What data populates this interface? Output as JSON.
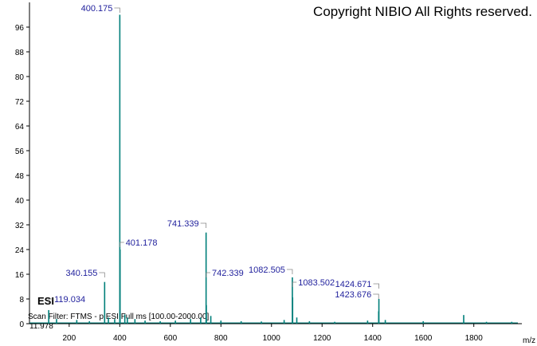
{
  "chart_data": {
    "type": "bar",
    "copyright": "Copyright NIBIO All Rights reserved.",
    "ion_mode": "ESI",
    "scan_filter": "Scan Filter: FTMS - p ESI Full ms [100.00-2000.00]",
    "retention_time": "11.978",
    "x_label": "m/z",
    "color": "#007f7a",
    "xlim": [
      43,
      1990
    ],
    "ylim": [
      0,
      104
    ],
    "xticks": [
      200,
      400,
      600,
      800,
      1000,
      1200,
      1400,
      1600,
      1800
    ],
    "yticks": [
      0,
      8,
      16,
      24,
      32,
      40,
      48,
      56,
      64,
      72,
      80,
      88,
      96
    ],
    "peaks": {
      "x": [
        400.175,
        401.178,
        741.339,
        742.339,
        340.155,
        1082.505,
        1083.502,
        1424.671,
        1423.676,
        119.034
      ],
      "values": [
        100,
        24,
        29.5,
        6,
        13.5,
        15,
        8.5,
        8,
        4,
        4.4
      ]
    },
    "minor_peaks": {
      "x": [
        150,
        230,
        280,
        355,
        380,
        420,
        430,
        460,
        500,
        560,
        620,
        680,
        720,
        760,
        800,
        880,
        960,
        1050,
        1100,
        1150,
        1250,
        1380,
        1450,
        1600,
        1760,
        1850,
        1950
      ],
      "values": [
        1.5,
        1.2,
        0.8,
        2,
        1.5,
        3,
        2,
        1.5,
        1,
        0.8,
        1,
        1.5,
        2,
        2.5,
        1,
        0.8,
        0.7,
        1.2,
        2,
        0.8,
        0.6,
        1,
        1.2,
        0.8,
        2.8,
        0.6,
        0.6
      ]
    }
  }
}
